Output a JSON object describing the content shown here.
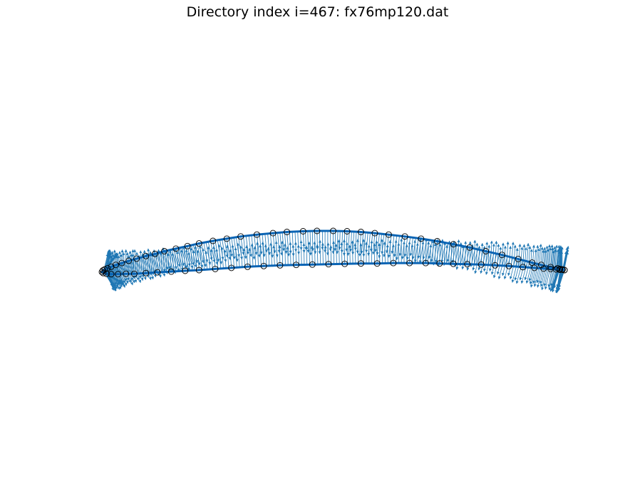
{
  "chart_data": {
    "type": "scatter",
    "title": "Directory index i=467: fx76mp120.dat",
    "xlabel": "",
    "ylabel": "",
    "axes_visible": false,
    "grid": false,
    "aspect": "equal",
    "xlim": [
      -0.03,
      1.03
    ],
    "ylim": [
      -0.2,
      0.3
    ],
    "colors": {
      "surface_line": "#0a64b4",
      "normal_arrows": "#1f77b4",
      "markers_edge": "#000000"
    },
    "series": [
      {
        "kind": "line_with_markers",
        "marker": "open-circle",
        "x": [
          1.0,
          0.995,
          0.99,
          0.985,
          0.97,
          0.95,
          0.93,
          0.9,
          0.865,
          0.83,
          0.795,
          0.76,
          0.725,
          0.69,
          0.655,
          0.62,
          0.59,
          0.56,
          0.53,
          0.5,
          0.465,
          0.435,
          0.4,
          0.37,
          0.335,
          0.3,
          0.27,
          0.24,
          0.21,
          0.185,
          0.16,
          0.135,
          0.115,
          0.095,
          0.075,
          0.058,
          0.043,
          0.03,
          0.02,
          0.012,
          0.006,
          0.002,
          0.0,
          0.003,
          0.01,
          0.02,
          0.035,
          0.052,
          0.07,
          0.095,
          0.12,
          0.15,
          0.18,
          0.21,
          0.245,
          0.28,
          0.315,
          0.35,
          0.385,
          0.42,
          0.455,
          0.49,
          0.525,
          0.56,
          0.595,
          0.63,
          0.665,
          0.7,
          0.73,
          0.76,
          0.79,
          0.82,
          0.85,
          0.88,
          0.91,
          0.935,
          0.955,
          0.97,
          0.982,
          0.99,
          0.996,
          1.0
        ],
        "y": [
          0.0,
          0.002,
          0.003,
          0.005,
          0.008,
          0.014,
          0.02,
          0.03,
          0.041,
          0.051,
          0.061,
          0.07,
          0.078,
          0.085,
          0.091,
          0.096,
          0.1,
          0.103,
          0.105,
          0.106,
          0.106,
          0.105,
          0.103,
          0.1,
          0.096,
          0.091,
          0.085,
          0.079,
          0.072,
          0.065,
          0.058,
          0.051,
          0.044,
          0.038,
          0.031,
          0.025,
          0.019,
          0.014,
          0.009,
          0.005,
          0.002,
          -0.001,
          -0.005,
          -0.008,
          -0.01,
          -0.011,
          -0.011,
          -0.01,
          -0.01,
          -0.008,
          -0.006,
          -0.004,
          -0.002,
          0.0,
          0.003,
          0.006,
          0.009,
          0.011,
          0.013,
          0.014,
          0.015,
          0.016,
          0.017,
          0.018,
          0.018,
          0.019,
          0.019,
          0.019,
          0.018,
          0.017,
          0.016,
          0.015,
          0.013,
          0.011,
          0.008,
          0.006,
          0.004,
          0.003,
          0.002,
          0.001,
          0.001,
          0.0
        ]
      }
    ]
  }
}
